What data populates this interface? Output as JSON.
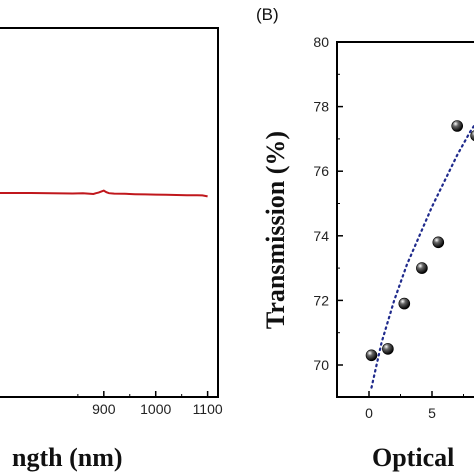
{
  "chart_data": [
    {
      "panel_label": "",
      "type": "line",
      "title": "",
      "xlabel": "ngth (nm)",
      "ylabel": "",
      "xlim": [
        700,
        1120
      ],
      "x_ticks": [
        900,
        1000,
        1100
      ],
      "x_tick_labels": [
        "900",
        "1000",
        "1100"
      ],
      "grid": false,
      "legend": "none",
      "color": "#c0171c",
      "series": [
        {
          "x": [
            700,
            760,
            800,
            840,
            860,
            870,
            880,
            885,
            890,
            895,
            900,
            905,
            910,
            920,
            940,
            960,
            980,
            1000,
            1020,
            1040,
            1060,
            1080,
            1090,
            1100
          ],
          "y": [
            0.0,
            0.0,
            -0.05,
            -0.12,
            -0.05,
            -0.15,
            -0.25,
            -0.05,
            0.1,
            0.35,
            0.6,
            0.2,
            -0.05,
            -0.15,
            -0.2,
            -0.3,
            -0.35,
            -0.4,
            -0.45,
            -0.5,
            -0.55,
            -0.55,
            -0.6,
            -0.85
          ]
        }
      ]
    },
    {
      "panel_label": "(B)",
      "type": "scatter",
      "title": "",
      "xlabel": "Optical",
      "ylabel": "Transmission (%)",
      "xlim": [
        -2.5,
        9
      ],
      "ylim": [
        69,
        80
      ],
      "x_ticks": [
        0,
        5
      ],
      "x_tick_labels": [
        "0",
        "5"
      ],
      "y_ticks": [
        70,
        72,
        74,
        76,
        78,
        80
      ],
      "y_tick_labels": [
        "70",
        "72",
        "74",
        "76",
        "78",
        "80"
      ],
      "grid": false,
      "legend": "none",
      "points": {
        "x": [
          0.2,
          1.5,
          2.8,
          4.2,
          5.5,
          7.0,
          8.5
        ],
        "y": [
          70.3,
          70.5,
          71.9,
          73.0,
          73.8,
          77.4,
          77.1
        ]
      },
      "fit_line": {
        "style": "dotted",
        "color": "#1f2a8c",
        "x": [
          0.2,
          1.0,
          2.0,
          3.0,
          4.0,
          5.0,
          6.0,
          7.0,
          8.0,
          9.0
        ],
        "y": [
          69.3,
          70.7,
          72.0,
          73.1,
          74.0,
          74.9,
          75.7,
          76.5,
          77.2,
          77.8
        ]
      }
    }
  ]
}
